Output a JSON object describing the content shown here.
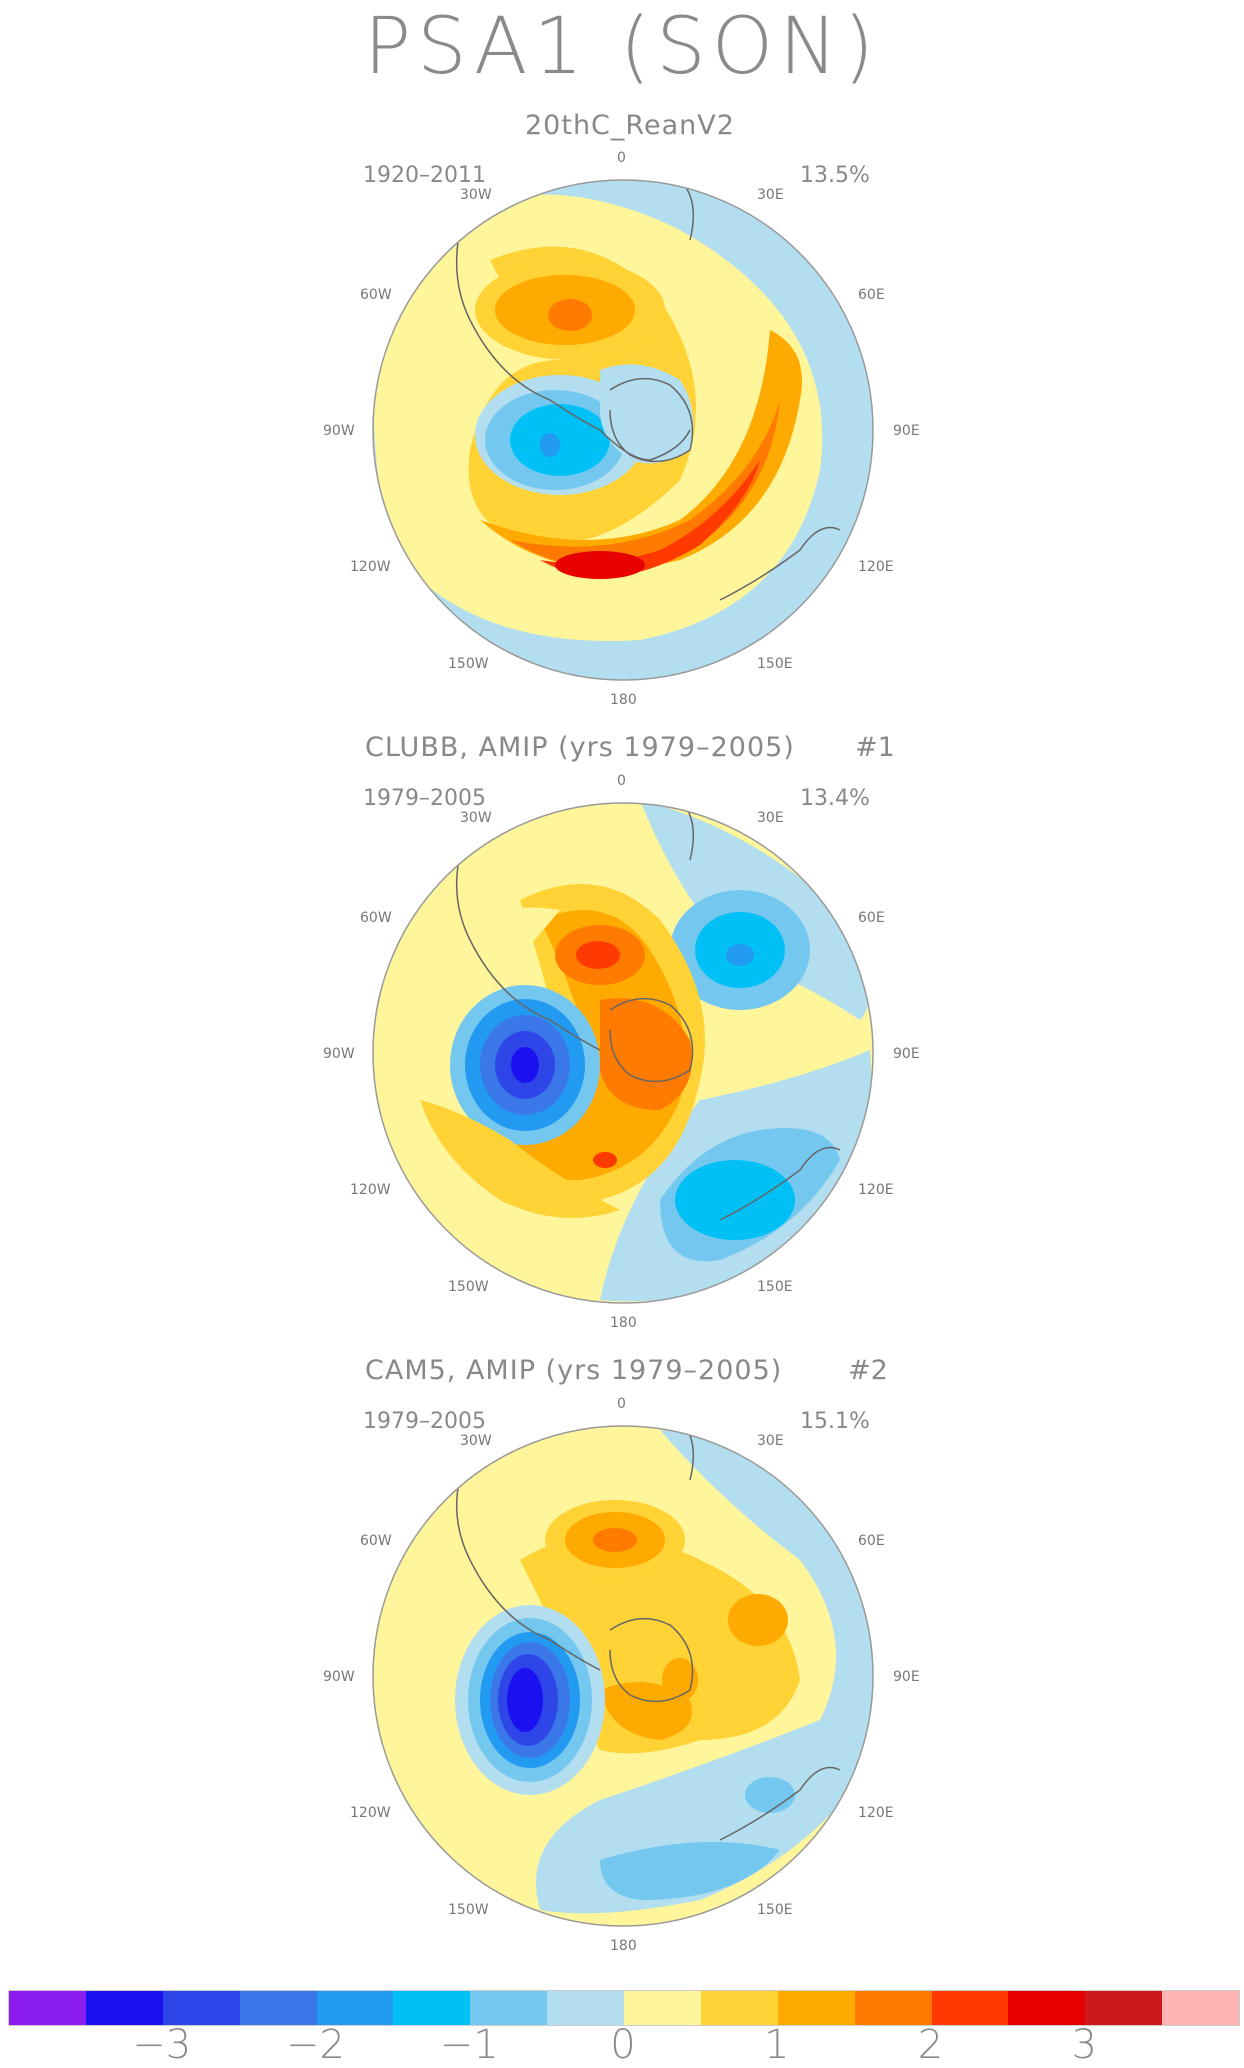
{
  "title": "PSA1 (SON)",
  "panels": [
    {
      "title": "20thC_ReanV2",
      "number": "",
      "years": "1920–2011",
      "variance": "13.5%"
    },
    {
      "title": "CLUBB, AMIP (yrs 1979–2005)",
      "number": "#1",
      "years": "1979–2005",
      "variance": "13.4%"
    },
    {
      "title": "CAM5, AMIP (yrs 1979–2005)",
      "number": "#2",
      "years": "1979–2005",
      "variance": "15.1%"
    }
  ],
  "longitude_labels": [
    "0",
    "30E",
    "60E",
    "90E",
    "120E",
    "150E",
    "180",
    "150W",
    "120W",
    "90W",
    "60W",
    "30W"
  ],
  "colorbar": {
    "colors": [
      "#8a1cf0",
      "#1a10f0",
      "#2e46e8",
      "#3a78ea",
      "#229af2",
      "#00c0f6",
      "#74c8f0",
      "#b2def0",
      "#fff59a",
      "#ffd235",
      "#ffaa00",
      "#ff7a00",
      "#ff3a00",
      "#e60000",
      "#cc1a1a",
      "#ffb4b4"
    ],
    "tick_labels": [
      "−3",
      "−2",
      "−1",
      "0",
      "1",
      "2",
      "3"
    ]
  },
  "colors": {
    "land_outline": "#666666",
    "circle_border": "#999999",
    "text": "#888888"
  }
}
